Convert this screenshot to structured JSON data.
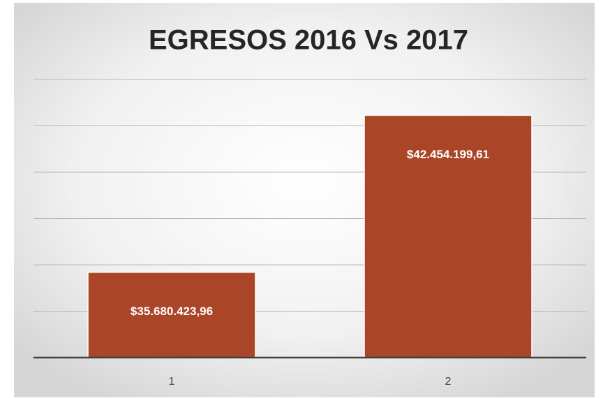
{
  "chart_data": {
    "type": "bar",
    "title": "EGRESOS 2016 Vs 2017",
    "categories": [
      "1",
      "2"
    ],
    "values": [
      35680423.96,
      42454199.61
    ],
    "value_labels": [
      "$35.680.423,96",
      "$42.454.199,61"
    ],
    "color": "#ab4527",
    "ylim": [
      32000000,
      44000000
    ],
    "yticks": [
      34000000,
      36000000,
      38000000,
      40000000,
      42000000,
      44000000
    ],
    "grid": true
  }
}
